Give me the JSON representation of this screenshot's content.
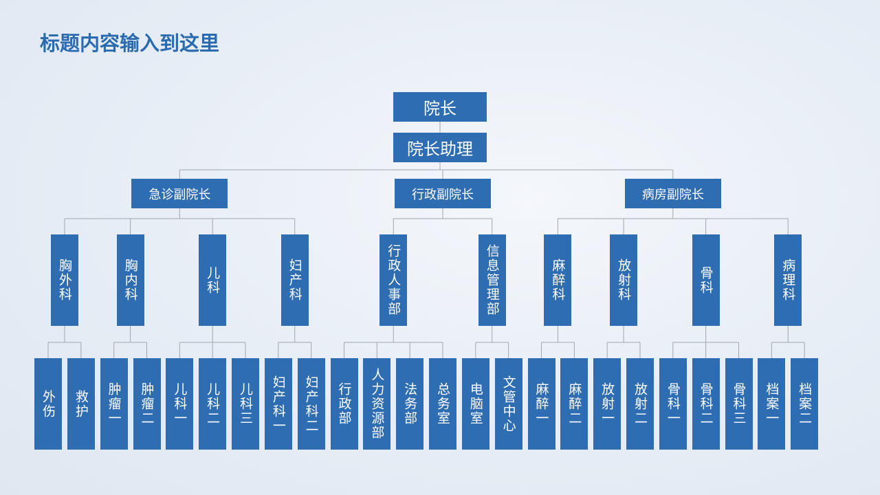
{
  "header": {
    "title": "标题内容输入到这里"
  },
  "root": {
    "label": "院长",
    "assistant": "院长助理"
  },
  "divisions": [
    {
      "label": "急诊副院长",
      "departments": [
        {
          "label": "胸外科",
          "units": [
            "外伤",
            "救护"
          ]
        },
        {
          "label": "胸内科",
          "units": [
            "肿瘤一",
            "肿瘤二"
          ]
        },
        {
          "label": "儿科",
          "units": [
            "儿科一",
            "儿科二",
            "儿科三"
          ]
        },
        {
          "label": "妇产科",
          "units": [
            "妇产科一",
            "妇产科二"
          ]
        }
      ]
    },
    {
      "label": "行政副院长",
      "departments": [
        {
          "label": "行政人事部",
          "units": [
            "行政部",
            "人力资源部",
            "法务部",
            "总务室"
          ]
        },
        {
          "label": "信息管理部",
          "units": [
            "电脑室",
            "文管中心"
          ]
        }
      ]
    },
    {
      "label": "病房副院长",
      "departments": [
        {
          "label": "麻醉科",
          "units": [
            "麻醉一",
            "麻醉二"
          ]
        },
        {
          "label": "放射科",
          "units": [
            "放射一",
            "放射二"
          ]
        },
        {
          "label": "骨科",
          "units": [
            "骨科一",
            "骨科二",
            "骨科三"
          ]
        },
        {
          "label": "病理科",
          "units": [
            "档案一",
            "档案二"
          ]
        }
      ]
    }
  ]
}
